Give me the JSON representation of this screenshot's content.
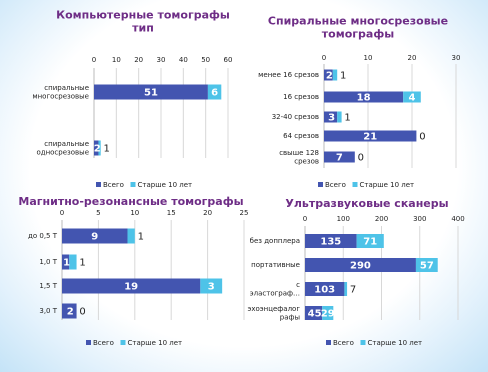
{
  "colors": {
    "total": "#4355b0",
    "older": "#4ec3e8",
    "grid": "#d8d8d8",
    "title": "#6e2d86"
  },
  "chart_data": [
    {
      "type": "bar",
      "orientation": "horizontal",
      "title": "Компьютерные томографы\nтип",
      "categories": [
        "спиральные\nмногосрезовые",
        "спиральные\nодносрезовые"
      ],
      "series": [
        {
          "name": "Всего",
          "values": [
            51,
            2
          ]
        },
        {
          "name": "Старше 10 лет",
          "values": [
            6,
            1
          ]
        }
      ],
      "xlim": [
        0,
        60
      ],
      "xticks": [
        0,
        10,
        20,
        30,
        40,
        50,
        60
      ],
      "grid": true,
      "legend": "bottom-left"
    },
    {
      "type": "bar",
      "orientation": "horizontal",
      "title": "Спиральные многосрезовые\nтомографы",
      "categories": [
        "менее 16 срезов",
        "16 срезов",
        "32-40 срезов",
        "64 срезов",
        "свыше 128\nсрезов"
      ],
      "series": [
        {
          "name": "Всего",
          "values": [
            2,
            18,
            3,
            21,
            7
          ]
        },
        {
          "name": "Старше 10 лет",
          "values": [
            1,
            4,
            1,
            0,
            0
          ]
        }
      ],
      "xlim": [
        0,
        30
      ],
      "xticks": [
        0,
        10,
        20,
        30
      ],
      "grid": true,
      "legend": "bottom-left"
    },
    {
      "type": "bar",
      "orientation": "horizontal",
      "title": "Магнитно-резонансные томографы",
      "categories": [
        "до 0,5 Т",
        "1,0 Т",
        "1,5 Т",
        "3,0 Т"
      ],
      "series": [
        {
          "name": "Всего",
          "values": [
            9,
            1,
            19,
            2
          ]
        },
        {
          "name": "Старше 10 лет",
          "values": [
            1,
            1,
            3,
            0
          ]
        }
      ],
      "xlim": [
        0,
        25
      ],
      "xticks": [
        0,
        5,
        10,
        15,
        20,
        25
      ],
      "grid": true,
      "legend": "bottom-center"
    },
    {
      "type": "bar",
      "orientation": "horizontal",
      "title": "Ультразвуковые сканеры",
      "categories": [
        "без допплера",
        "портативные",
        "с\nэластограф…",
        "эхоэнцефалог\nрафы"
      ],
      "series": [
        {
          "name": "Всего",
          "values": [
            135,
            290,
            103,
            45
          ]
        },
        {
          "name": "Старше 10 лет",
          "values": [
            71,
            57,
            7,
            29
          ]
        }
      ],
      "xlim": [
        0,
        400
      ],
      "xticks": [
        0,
        100,
        200,
        300,
        400
      ],
      "grid": true,
      "legend": "bottom-center"
    }
  ]
}
